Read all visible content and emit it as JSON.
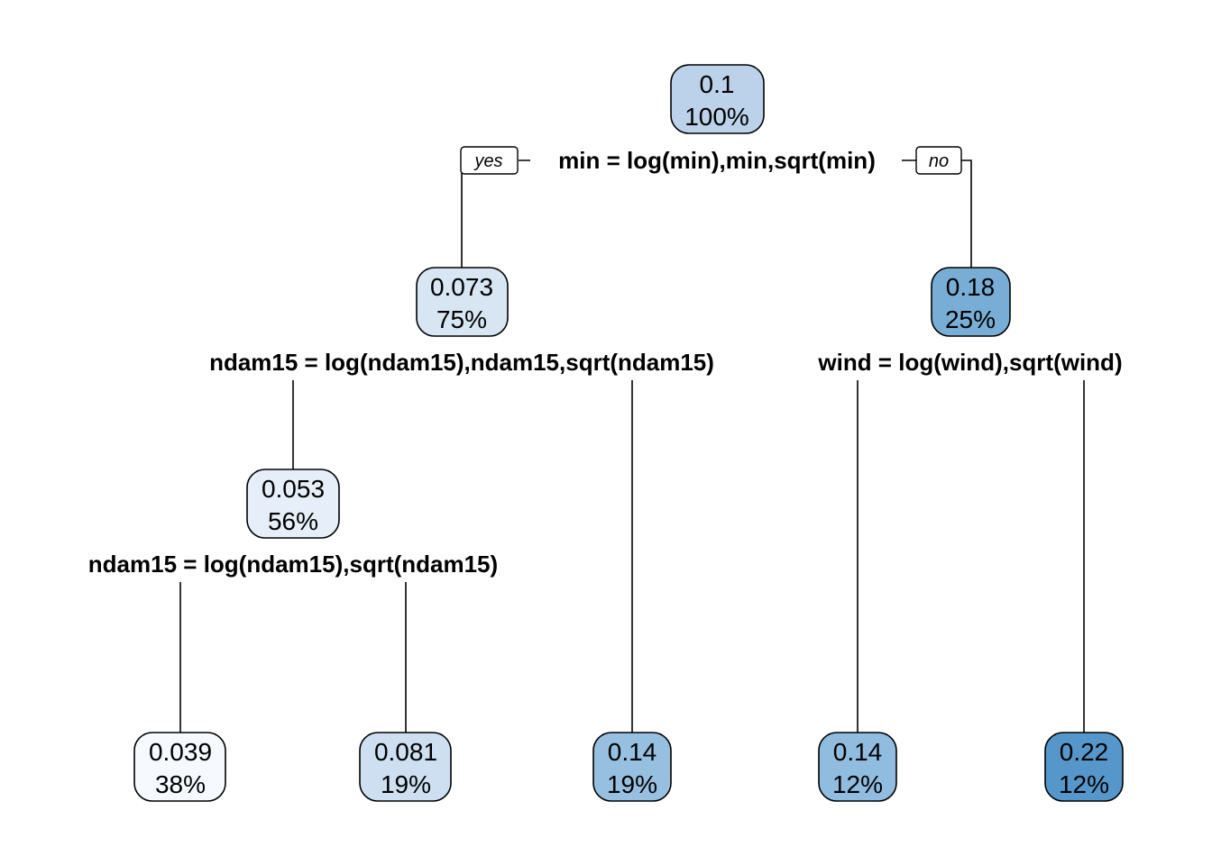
{
  "tree": {
    "branch_labels": {
      "left": "yes",
      "right": "no"
    },
    "nodes": [
      {
        "id": "root",
        "value": "0.1",
        "percent": "100%",
        "color": "#BCD2EA"
      },
      {
        "id": "n2",
        "value": "0.073",
        "percent": "75%",
        "color": "#D8E6F4"
      },
      {
        "id": "n3",
        "value": "0.18",
        "percent": "25%",
        "color": "#78AED5"
      },
      {
        "id": "n4",
        "value": "0.053",
        "percent": "56%",
        "color": "#E6EFF9"
      },
      {
        "id": "leaf1",
        "value": "0.039",
        "percent": "38%",
        "color": "#F6FAFE"
      },
      {
        "id": "leaf2",
        "value": "0.081",
        "percent": "19%",
        "color": "#CDDFF1"
      },
      {
        "id": "leaf3",
        "value": "0.14",
        "percent": "19%",
        "color": "#97C0E0"
      },
      {
        "id": "leaf4",
        "value": "0.14",
        "percent": "12%",
        "color": "#90BCDF"
      },
      {
        "id": "leaf5",
        "value": "0.22",
        "percent": "12%",
        "color": "#5597CB"
      }
    ],
    "splits": [
      {
        "id": "root",
        "text": "min = log(min),min,sqrt(min)"
      },
      {
        "id": "n2",
        "text": "ndam15 = log(ndam15),ndam15,sqrt(ndam15)"
      },
      {
        "id": "n3",
        "text": "wind = log(wind),sqrt(wind)"
      },
      {
        "id": "n4",
        "text": "ndam15 = log(ndam15),sqrt(ndam15)"
      }
    ]
  }
}
